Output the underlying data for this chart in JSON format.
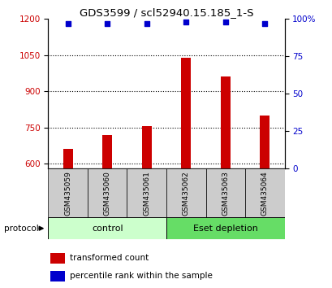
{
  "title": "GDS3599 / scl52940.15.185_1-S",
  "samples": [
    "GSM435059",
    "GSM435060",
    "GSM435061",
    "GSM435062",
    "GSM435063",
    "GSM435064"
  ],
  "transformed_counts": [
    660,
    720,
    755,
    1040,
    960,
    800
  ],
  "percentile_ranks": [
    97,
    97,
    97,
    98,
    98,
    97
  ],
  "ylim_left": [
    580,
    1200
  ],
  "ylim_right": [
    0,
    100
  ],
  "yticks_left": [
    600,
    750,
    900,
    1050,
    1200
  ],
  "yticks_right": [
    0,
    25,
    50,
    75,
    100
  ],
  "bar_color": "#cc0000",
  "dot_color": "#0000cc",
  "groups": [
    {
      "label": "control",
      "color": "#ccffcc",
      "start": 0,
      "end": 3
    },
    {
      "label": "Eset depletion",
      "color": "#66dd66",
      "start": 3,
      "end": 6
    }
  ],
  "protocol_label": "protocol",
  "legend_bar_label": "transformed count",
  "legend_dot_label": "percentile rank within the sample",
  "label_color_left": "#cc0000",
  "label_color_right": "#0000cc",
  "tick_box_color": "#cccccc",
  "title_fontsize": 9.5,
  "axis_fontsize": 7.5,
  "sample_fontsize": 6.5,
  "group_fontsize": 8,
  "legend_fontsize": 7.5
}
